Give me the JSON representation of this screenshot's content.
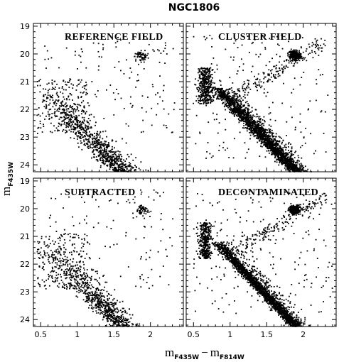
{
  "chart_data": {
    "type": "scatter",
    "title": "NGC1806",
    "xlabel": {
      "main": "m",
      "sub1": "F435W",
      "minus": "−",
      "main2": "m",
      "sub2": "F814W"
    },
    "ylabel": {
      "main": "m",
      "sub": "F435W"
    },
    "xlim": [
      0.4,
      2.45
    ],
    "ylim": [
      24.25,
      18.9
    ],
    "y_inverted": true,
    "grid": false,
    "x_ticks": [
      0.5,
      1,
      1.5,
      2
    ],
    "x_tick_labels": [
      "0.5",
      "1",
      "1.5",
      "2"
    ],
    "y_ticks": [
      19,
      20,
      21,
      22,
      23,
      24
    ],
    "y_tick_labels": [
      "19",
      "20",
      "21",
      "22",
      "23",
      "24"
    ],
    "marker_color": "#000000",
    "panels": [
      {
        "label": "REFERENCE FIELD",
        "position": "top-left",
        "n_points": 1250,
        "points": [
          [
            1.88,
            20.02
          ],
          [
            1.93,
            20.08
          ],
          [
            1.85,
            19.95
          ],
          [
            1.97,
            20.15
          ],
          [
            1.9,
            20.2
          ],
          [
            2.05,
            19.9
          ],
          [
            2.1,
            19.85
          ],
          [
            2.2,
            19.8
          ],
          [
            0.6,
            21.4
          ],
          [
            0.7,
            21.2
          ],
          [
            0.8,
            21.7
          ],
          [
            0.55,
            21.9
          ],
          [
            0.75,
            20.5
          ],
          [
            0.9,
            20.9
          ],
          [
            1.4,
            21.3
          ],
          [
            1.6,
            21.6
          ],
          [
            1.7,
            22.6
          ],
          [
            2.1,
            21.8
          ],
          [
            1.5,
            22.2
          ],
          [
            1.2,
            21.0
          ],
          [
            0.65,
            22.3
          ],
          [
            1.05,
            20.3
          ],
          [
            1.3,
            20.1
          ],
          [
            1.8,
            21.2
          ]
        ]
      },
      {
        "label": "CLUSTER FIELD",
        "position": "top-right",
        "n_points": 3200,
        "points": [
          [
            1.88,
            20.05
          ],
          [
            1.9,
            20.0
          ],
          [
            1.86,
            20.1
          ],
          [
            1.92,
            19.98
          ],
          [
            1.85,
            20.02
          ],
          [
            1.89,
            20.12
          ],
          [
            1.95,
            20.05
          ],
          [
            1.87,
            19.93
          ],
          [
            0.65,
            21.0
          ],
          [
            0.68,
            21.3
          ],
          [
            0.72,
            21.5
          ],
          [
            0.7,
            20.8
          ],
          [
            0.66,
            21.7
          ],
          [
            0.75,
            21.2
          ],
          [
            2.2,
            19.8
          ],
          [
            2.3,
            19.7
          ]
        ]
      },
      {
        "label": "SUBTRACTED",
        "position": "bottom-left",
        "n_points": 1200,
        "points": [
          [
            1.88,
            20.02
          ],
          [
            1.92,
            20.1
          ],
          [
            1.85,
            19.95
          ],
          [
            1.95,
            20.0
          ],
          [
            0.6,
            21.4
          ],
          [
            0.7,
            21.2
          ],
          [
            0.8,
            21.8
          ],
          [
            0.9,
            20.9
          ],
          [
            1.5,
            21.3
          ],
          [
            1.7,
            22.1
          ],
          [
            2.0,
            21.5
          ],
          [
            0.55,
            22.0
          ]
        ]
      },
      {
        "label": "DECONTAMINATED",
        "position": "bottom-right",
        "n_points": 3100,
        "points": [
          [
            1.88,
            20.05
          ],
          [
            1.9,
            20.0
          ],
          [
            1.86,
            20.1
          ],
          [
            1.92,
            19.98
          ],
          [
            1.85,
            20.02
          ],
          [
            1.89,
            20.12
          ],
          [
            0.65,
            21.0
          ],
          [
            0.68,
            21.3
          ],
          [
            0.72,
            21.5
          ],
          [
            0.7,
            20.8
          ],
          [
            2.2,
            19.8
          ],
          [
            2.3,
            19.7
          ]
        ]
      }
    ]
  }
}
